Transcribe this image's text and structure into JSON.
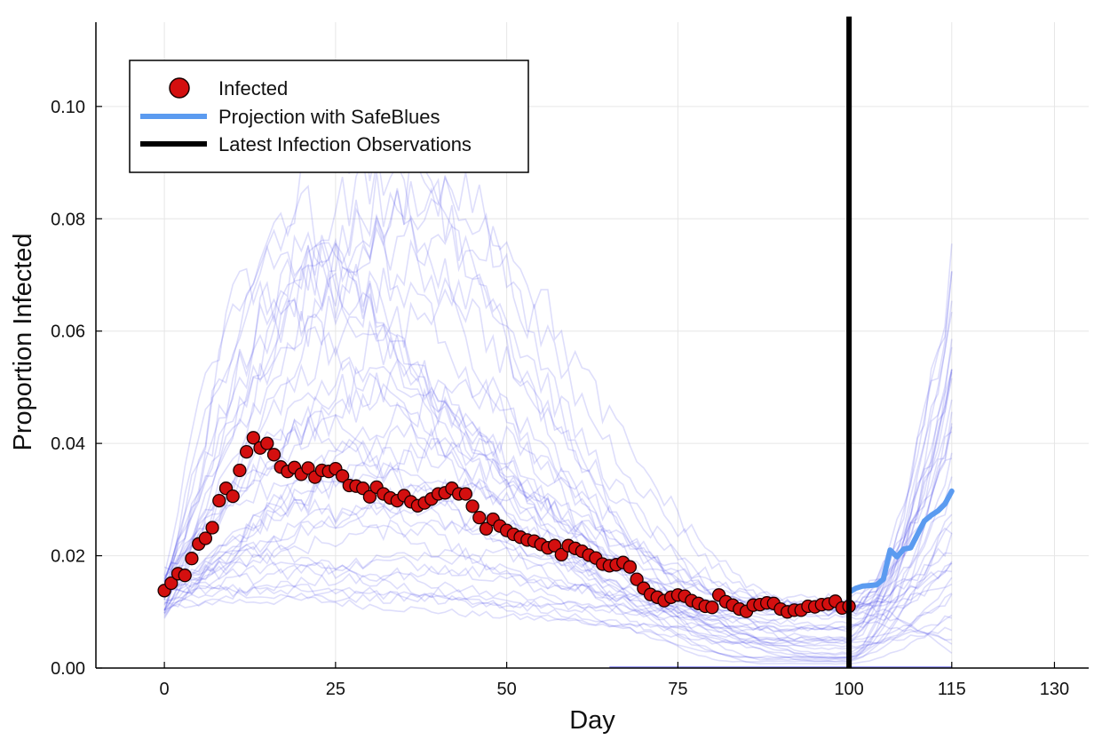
{
  "chart_data": {
    "type": "line",
    "xlabel": "Day",
    "ylabel": "Proportion Infected",
    "xlim": [
      -10,
      135
    ],
    "ylim": [
      0,
      0.115
    ],
    "x_ticks": [
      0,
      25,
      50,
      75,
      100,
      115,
      130
    ],
    "x_tick_labels": [
      "0",
      "25",
      "50",
      "75",
      "100",
      "115",
      "130"
    ],
    "y_ticks": [
      0,
      0.02,
      0.04,
      0.06,
      0.08,
      0.1
    ],
    "y_tick_labels": [
      "0.00",
      "0.02",
      "0.04",
      "0.06",
      "0.08",
      "0.10"
    ],
    "grid": true,
    "legend_position": "top-left",
    "colors": {
      "infected_fill": "#d40f0f",
      "infected_edge": "#1a0000",
      "projection": "#5b9bf0",
      "observation_line": "#000000",
      "simulation_traces": "#3434e6"
    },
    "legend": [
      {
        "label": "Infected",
        "marker": "circle"
      },
      {
        "label": "Projection with SafeBlues",
        "marker": "line"
      },
      {
        "label": "Latest Infection Observations",
        "marker": "line"
      }
    ],
    "series": [
      {
        "name": "Infected",
        "kind": "scatter",
        "x": [
          0,
          1,
          2,
          3,
          4,
          5,
          6,
          7,
          8,
          9,
          10,
          11,
          12,
          13,
          14,
          15,
          16,
          17,
          18,
          19,
          20,
          21,
          22,
          23,
          24,
          25,
          26,
          27,
          28,
          29,
          30,
          31,
          32,
          33,
          34,
          35,
          36,
          37,
          38,
          39,
          40,
          41,
          42,
          43,
          44,
          45,
          46,
          47,
          48,
          49,
          50,
          51,
          52,
          53,
          54,
          55,
          56,
          57,
          58,
          59,
          60,
          61,
          62,
          63,
          64,
          65,
          66,
          67,
          68,
          69,
          70,
          71,
          72,
          73,
          74,
          75,
          76,
          77,
          78,
          79,
          80,
          81,
          82,
          83,
          84,
          85,
          86,
          87,
          88,
          89,
          90,
          91,
          92,
          93,
          94,
          95,
          96,
          97,
          98,
          99,
          100
        ],
        "y": [
          0.0138,
          0.0151,
          0.0168,
          0.0165,
          0.0195,
          0.0221,
          0.0231,
          0.025,
          0.0298,
          0.032,
          0.0306,
          0.0352,
          0.0385,
          0.041,
          0.0392,
          0.04,
          0.038,
          0.0358,
          0.035,
          0.0357,
          0.0345,
          0.0356,
          0.034,
          0.0352,
          0.035,
          0.0355,
          0.0342,
          0.0325,
          0.0324,
          0.032,
          0.0305,
          0.0322,
          0.031,
          0.0303,
          0.0298,
          0.0307,
          0.0296,
          0.0289,
          0.0294,
          0.0301,
          0.031,
          0.0312,
          0.032,
          0.031,
          0.031,
          0.0288,
          0.0268,
          0.0248,
          0.0265,
          0.0253,
          0.0245,
          0.0238,
          0.0233,
          0.0228,
          0.0226,
          0.022,
          0.0214,
          0.0218,
          0.0202,
          0.0218,
          0.0213,
          0.0208,
          0.0201,
          0.0196,
          0.0185,
          0.0182,
          0.0184,
          0.0188,
          0.018,
          0.0158,
          0.0142,
          0.0131,
          0.0126,
          0.012,
          0.0126,
          0.013,
          0.0128,
          0.012,
          0.0115,
          0.011,
          0.0108,
          0.013,
          0.0118,
          0.0112,
          0.0105,
          0.0101,
          0.0112,
          0.0113,
          0.0116,
          0.0115,
          0.0105,
          0.01,
          0.0103,
          0.0103,
          0.011,
          0.0109,
          0.0113,
          0.0114,
          0.0119,
          0.0107,
          0.011
        ]
      },
      {
        "name": "Projection with SafeBlues",
        "kind": "line",
        "x": [
          100,
          101,
          102,
          103,
          104,
          105,
          106,
          107,
          108,
          109,
          110,
          111,
          112,
          113,
          114,
          115
        ],
        "y": [
          0.0135,
          0.0142,
          0.0146,
          0.0147,
          0.0148,
          0.0158,
          0.021,
          0.0198,
          0.0212,
          0.0214,
          0.0238,
          0.0262,
          0.0272,
          0.028,
          0.0292,
          0.0315
        ]
      },
      {
        "name": "Latest Infection Observations",
        "kind": "vline",
        "x": [
          100,
          100
        ],
        "y": [
          0.0,
          0.116
        ]
      }
    ],
    "simulation_traces": {
      "count": 40,
      "x_range": [
        0,
        115
      ],
      "peak_range": [
        0.012,
        0.096
      ]
    }
  }
}
